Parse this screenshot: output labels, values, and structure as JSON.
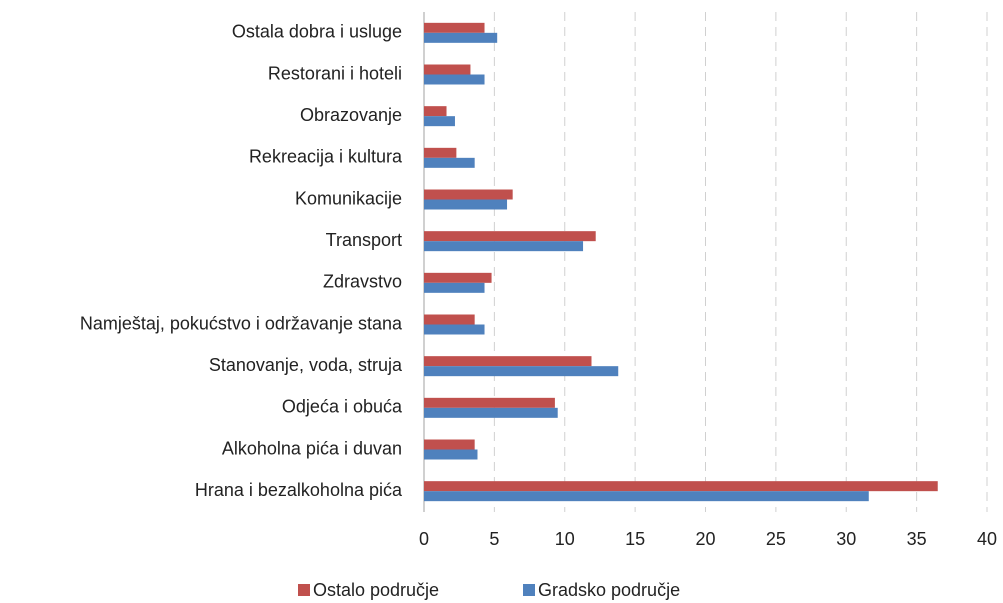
{
  "chart_data": {
    "type": "barh",
    "categories": [
      "Ostala dobra i usluge",
      "Restorani i hoteli",
      "Obrazovanje",
      "Rekreacija i kultura",
      "Komunikacije",
      "Transport",
      "Zdravstvo",
      "Namještaj, pokućstvo i održavanje stana",
      "Stanovanje, voda, struja",
      "Odjeća i obuća",
      "Alkoholna pića i duvan",
      "Hrana i bezalkoholna pića"
    ],
    "series": [
      {
        "name": "Ostalo područje",
        "color": "#c0504d",
        "values": [
          4.3,
          3.3,
          1.6,
          2.3,
          6.3,
          12.2,
          4.8,
          3.6,
          11.9,
          9.3,
          3.6,
          36.5
        ]
      },
      {
        "name": "Gradsko područje",
        "color": "#4f81bd",
        "values": [
          5.2,
          4.3,
          2.2,
          3.6,
          5.9,
          11.3,
          4.3,
          4.3,
          13.8,
          9.5,
          3.8,
          31.6
        ]
      }
    ],
    "xlim": [
      0,
      40
    ],
    "xticks": [
      0,
      5,
      10,
      15,
      20,
      25,
      30,
      35,
      40
    ],
    "grid": true,
    "legend": "bottom"
  }
}
